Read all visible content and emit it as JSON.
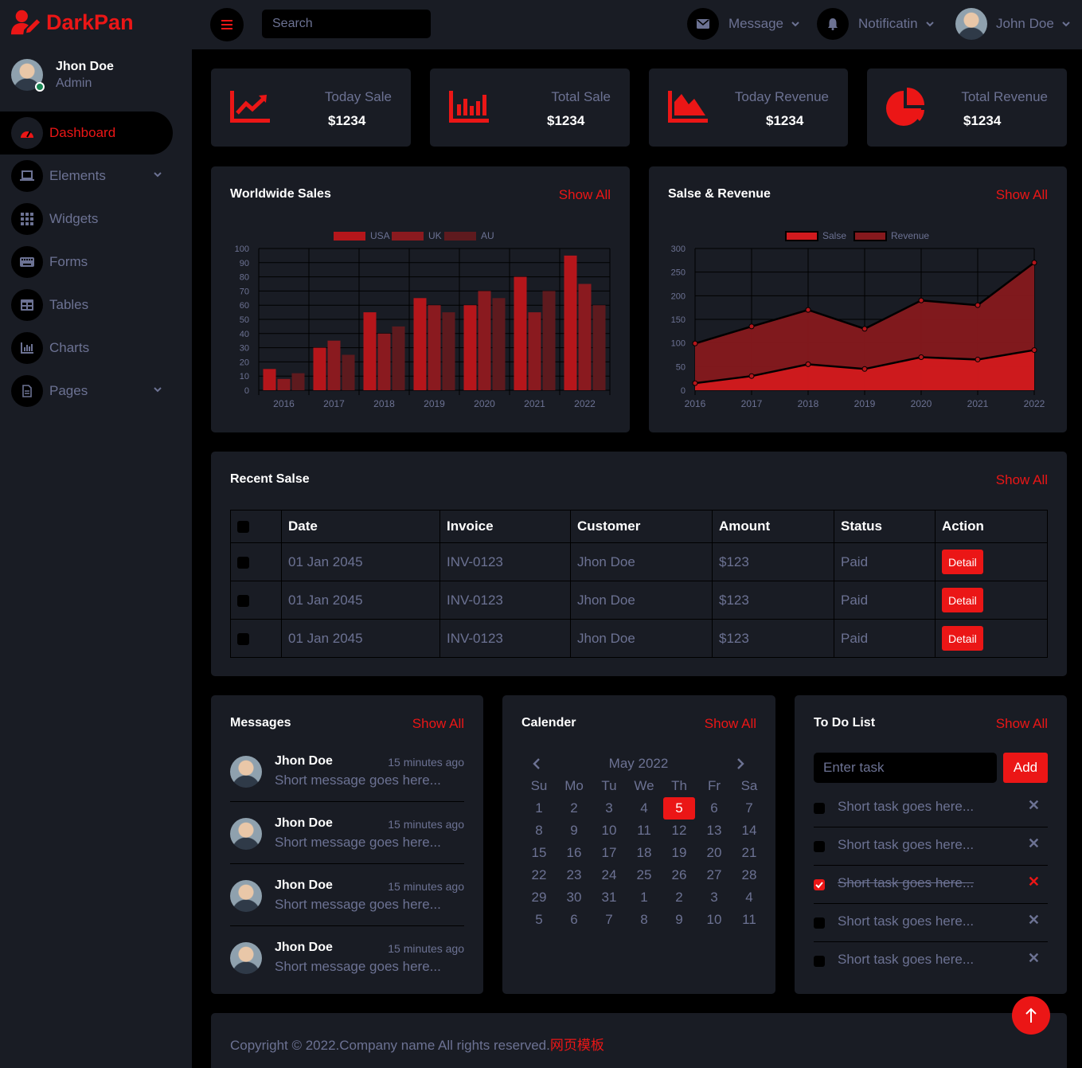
{
  "brand": {
    "name": "DarkPan",
    "icon": "user-edit-icon"
  },
  "sidebar_user": {
    "name": "Jhon Doe",
    "role": "Admin"
  },
  "nav": [
    {
      "label": "Dashboard",
      "icon": "tachometer-icon",
      "active": true
    },
    {
      "label": "Elements",
      "icon": "laptop-icon",
      "dropdown": true
    },
    {
      "label": "Widgets",
      "icon": "th-icon"
    },
    {
      "label": "Forms",
      "icon": "keyboard-icon"
    },
    {
      "label": "Tables",
      "icon": "table-icon"
    },
    {
      "label": "Charts",
      "icon": "chart-bar-icon"
    },
    {
      "label": "Pages",
      "icon": "file-icon",
      "dropdown": true
    }
  ],
  "topbar": {
    "search_placeholder": "Search",
    "message_label": "Message",
    "notification_label": "Notificatin",
    "user_name": "John Doe"
  },
  "stats": [
    {
      "label": "Today Sale",
      "value": "$1234",
      "icon": "chart-line-icon"
    },
    {
      "label": "Total Sale",
      "value": "$1234",
      "icon": "chart-bar-icon"
    },
    {
      "label": "Today Revenue",
      "value": "$1234",
      "icon": "chart-area-icon"
    },
    {
      "label": "Total Revenue",
      "value": "$1234",
      "icon": "chart-pie-icon"
    }
  ],
  "worldwide": {
    "title": "Worldwide Sales",
    "show_all": "Show All"
  },
  "salse_revenue": {
    "title": "Salse & Revenue",
    "show_all": "Show All"
  },
  "chart_data": [
    {
      "type": "bar",
      "title": "",
      "categories": [
        "2016",
        "2017",
        "2018",
        "2019",
        "2020",
        "2021",
        "2022"
      ],
      "series": [
        {
          "name": "USA",
          "values": [
            15,
            30,
            55,
            65,
            60,
            80,
            95
          ]
        },
        {
          "name": "UK",
          "values": [
            8,
            35,
            40,
            60,
            70,
            55,
            75
          ]
        },
        {
          "name": "AU",
          "values": [
            12,
            25,
            45,
            55,
            65,
            70,
            60
          ]
        }
      ],
      "ylim": [
        0,
        100
      ],
      "yticks": [
        0,
        10,
        20,
        30,
        40,
        50,
        60,
        70,
        80,
        90,
        100
      ],
      "legend": "top",
      "grid": true,
      "colors": [
        "#B5161B",
        "#8A1A1F",
        "#5E1A1E"
      ]
    },
    {
      "type": "area",
      "title": "",
      "categories": [
        "2016",
        "2017",
        "2018",
        "2019",
        "2020",
        "2021",
        "2022"
      ],
      "series": [
        {
          "name": "Salse",
          "values": [
            15,
            30,
            55,
            45,
            70,
            65,
            85
          ]
        },
        {
          "name": "Revenue",
          "values": [
            99,
            135,
            170,
            130,
            190,
            180,
            270
          ]
        }
      ],
      "ylim": [
        0,
        300
      ],
      "yticks": [
        0,
        50,
        100,
        150,
        200,
        250,
        300
      ],
      "legend": "top",
      "grid": true,
      "colors": [
        "#D11A1E",
        "#86191D"
      ]
    }
  ],
  "recent_sales": {
    "title": "Recent Salse",
    "show_all": "Show All",
    "columns": [
      "Date",
      "Invoice",
      "Customer",
      "Amount",
      "Status",
      "Action"
    ],
    "rows": [
      {
        "date": "01 Jan 2045",
        "invoice": "INV-0123",
        "customer": "Jhon Doe",
        "amount": "$123",
        "status": "Paid",
        "action": "Detail"
      },
      {
        "date": "01 Jan 2045",
        "invoice": "INV-0123",
        "customer": "Jhon Doe",
        "amount": "$123",
        "status": "Paid",
        "action": "Detail"
      },
      {
        "date": "01 Jan 2045",
        "invoice": "INV-0123",
        "customer": "Jhon Doe",
        "amount": "$123",
        "status": "Paid",
        "action": "Detail"
      }
    ]
  },
  "messages": {
    "title": "Messages",
    "show_all": "Show All",
    "items": [
      {
        "name": "Jhon Doe",
        "time": "15 minutes ago",
        "text": "Short message goes here..."
      },
      {
        "name": "Jhon Doe",
        "time": "15 minutes ago",
        "text": "Short message goes here..."
      },
      {
        "name": "Jhon Doe",
        "time": "15 minutes ago",
        "text": "Short message goes here..."
      },
      {
        "name": "Jhon Doe",
        "time": "15 minutes ago",
        "text": "Short message goes here..."
      }
    ]
  },
  "calendar": {
    "title": "Calender",
    "show_all": "Show All",
    "month": "May 2022",
    "weekdays": [
      "Su",
      "Mo",
      "Tu",
      "We",
      "Th",
      "Fr",
      "Sa"
    ],
    "days": [
      "1",
      "2",
      "3",
      "4",
      "5",
      "6",
      "7",
      "8",
      "9",
      "10",
      "11",
      "12",
      "13",
      "14",
      "15",
      "16",
      "17",
      "18",
      "19",
      "20",
      "21",
      "22",
      "23",
      "24",
      "25",
      "26",
      "27",
      "28",
      "29",
      "30",
      "31",
      "1",
      "2",
      "3",
      "4",
      "5",
      "6",
      "7",
      "8",
      "9",
      "10",
      "11"
    ],
    "today": "5"
  },
  "todo": {
    "title": "To Do List",
    "show_all": "Show All",
    "placeholder": "Enter task",
    "add_label": "Add",
    "tasks": [
      {
        "text": "Short task goes here...",
        "done": false
      },
      {
        "text": "Short task goes here...",
        "done": false
      },
      {
        "text": "Short task goes here...",
        "done": true
      },
      {
        "text": "Short task goes here...",
        "done": false
      },
      {
        "text": "Short task goes here...",
        "done": false
      }
    ]
  },
  "footer": {
    "copyright": "Copyright © 2022.Company name All rights reserved.",
    "link": "网页模板"
  },
  "colors": {
    "accent": "#EB1616",
    "panel": "#191C24",
    "background": "#000000",
    "muted": "#6C7293"
  }
}
